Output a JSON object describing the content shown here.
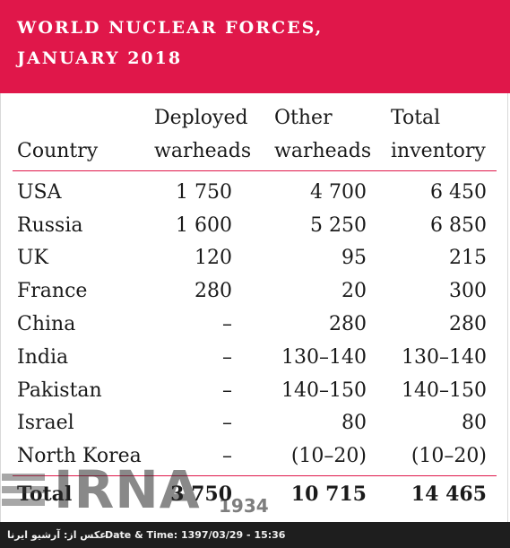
{
  "colors": {
    "accent": "#e0174a",
    "footer_bg": "#1e1e1e"
  },
  "chart_data": {
    "type": "table",
    "title_line1": "WORLD NUCLEAR FORCES,",
    "title_line2": "JANUARY 2018",
    "columns": {
      "country": [
        "Country"
      ],
      "deployed": [
        "Deployed",
        "warheads"
      ],
      "other": [
        "Other",
        "warheads"
      ],
      "total": [
        "Total",
        "inventory"
      ]
    },
    "rows": [
      {
        "country": "USA",
        "deployed": "1 750",
        "other": "4 700",
        "total": "6 450"
      },
      {
        "country": "Russia",
        "deployed": "1 600",
        "other": "5 250",
        "total": "6 850"
      },
      {
        "country": "UK",
        "deployed": "120",
        "other": "95",
        "total": "215"
      },
      {
        "country": "France",
        "deployed": "280",
        "other": "20",
        "total": "300"
      },
      {
        "country": "China",
        "deployed": "–",
        "other": "280",
        "total": "280"
      },
      {
        "country": "India",
        "deployed": "–",
        "other": "130–140",
        "total": "130–140"
      },
      {
        "country": "Pakistan",
        "deployed": "–",
        "other": "140–150",
        "total": "140–150"
      },
      {
        "country": "Israel",
        "deployed": "–",
        "other": "80",
        "total": "80"
      },
      {
        "country": "North Korea",
        "deployed": "–",
        "other": "(10–20)",
        "total": "(10–20)"
      }
    ],
    "total_row": {
      "country": "Total",
      "deployed": "3 750",
      "other": "10 715",
      "total": "14 465"
    }
  },
  "watermark": {
    "text": "IRNA",
    "year": "1934"
  },
  "footer": {
    "caption": "عکس از: آرشیو ایرنا",
    "datetime": "Date & Time: 1397/03/29 - 15:36"
  }
}
